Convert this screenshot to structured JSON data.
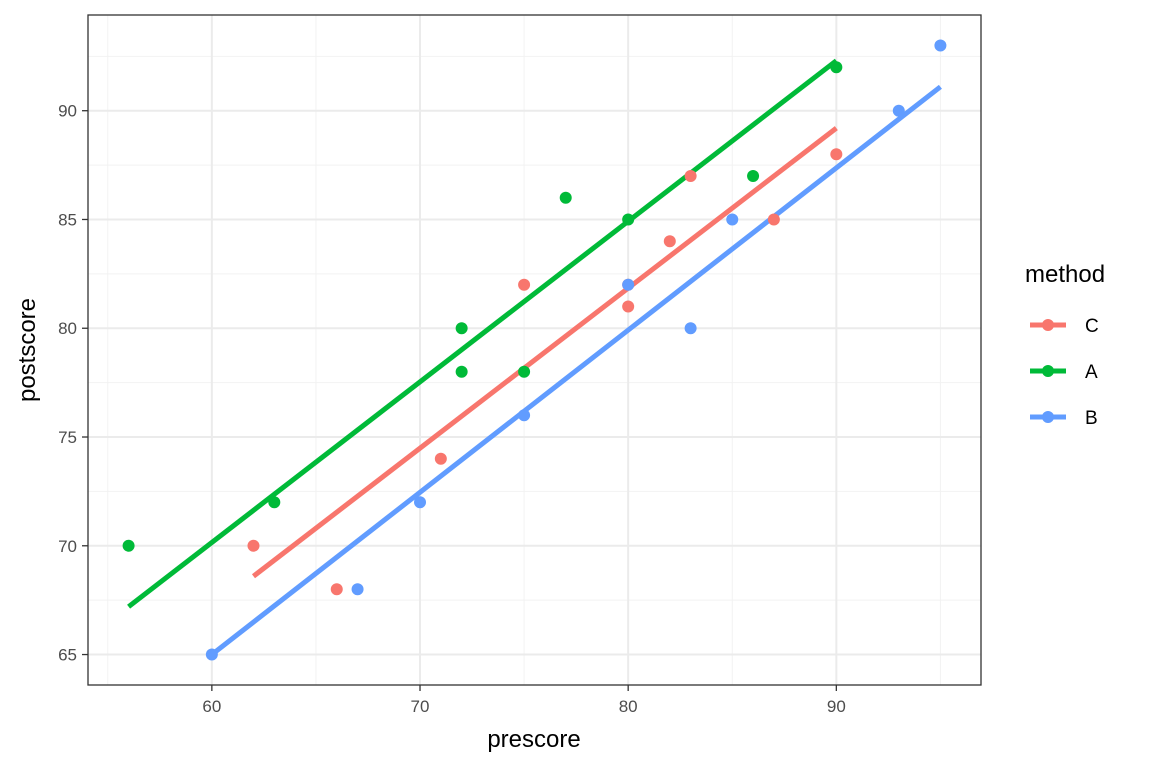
{
  "chart_data": {
    "type": "scatter",
    "title": "",
    "xlabel": "prescore",
    "ylabel": "postscore",
    "xlim": [
      54.05,
      96.95
    ],
    "ylim": [
      63.6,
      94.4
    ],
    "x_ticks": [
      60,
      70,
      80,
      90
    ],
    "y_ticks": [
      65,
      70,
      75,
      80,
      85,
      90
    ],
    "grid": true,
    "legend": {
      "title": "method",
      "position": "right"
    },
    "series": [
      {
        "name": "C",
        "color": "#F8766D",
        "points": [
          [
            62,
            70
          ],
          [
            66,
            68
          ],
          [
            71,
            74
          ],
          [
            75,
            82
          ],
          [
            80,
            81
          ],
          [
            80,
            82
          ],
          [
            82,
            84
          ],
          [
            83,
            87
          ],
          [
            87,
            85
          ],
          [
            90,
            88
          ]
        ],
        "fit": {
          "x": [
            62,
            90
          ],
          "y": [
            68.6,
            89.2
          ]
        }
      },
      {
        "name": "A",
        "color": "#00BA38",
        "points": [
          [
            56,
            70
          ],
          [
            63,
            72
          ],
          [
            72,
            80
          ],
          [
            72,
            78
          ],
          [
            75,
            78
          ],
          [
            77,
            86
          ],
          [
            80,
            85
          ],
          [
            86,
            87
          ],
          [
            90,
            92
          ]
        ],
        "fit": {
          "x": [
            56,
            90
          ],
          "y": [
            67.2,
            92.3
          ]
        }
      },
      {
        "name": "B",
        "color": "#619CFF",
        "points": [
          [
            60,
            65
          ],
          [
            67,
            68
          ],
          [
            70,
            72
          ],
          [
            75,
            76
          ],
          [
            80,
            82
          ],
          [
            83,
            80
          ],
          [
            85,
            85
          ],
          [
            93,
            90
          ],
          [
            95,
            93
          ]
        ],
        "fit": {
          "x": [
            60,
            95
          ],
          "y": [
            65.0,
            91.1
          ]
        }
      }
    ]
  }
}
